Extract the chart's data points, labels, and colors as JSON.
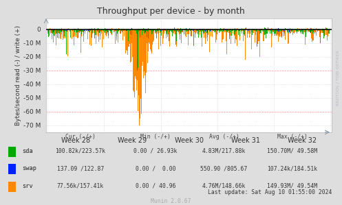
{
  "title": "Throughput per device - by month",
  "ylabel": "Bytes/second read (-) / write (+)",
  "bg_color": "#DEDEDE",
  "plot_bg_color": "#FFFFFF",
  "yticks": [
    0,
    -10000000,
    -20000000,
    -30000000,
    -40000000,
    -50000000,
    -60000000,
    -70000000
  ],
  "ytick_labels": [
    "0",
    "-10 M",
    "-20 M",
    "-30 M",
    "-40 M",
    "-50 M",
    "-60 M",
    "-70 M"
  ],
  "ylim": [
    -75000000,
    8000000
  ],
  "xlim_max": 600,
  "weeks": [
    "Week 28",
    "Week 29",
    "Week 30",
    "Week 31",
    "Week 32"
  ],
  "week_x": [
    60,
    180,
    300,
    420,
    540
  ],
  "vline_x": [
    0,
    120,
    240,
    360,
    480,
    600
  ],
  "legend_items": [
    {
      "label": "sda",
      "color": "#00AA00"
    },
    {
      "label": "swap",
      "color": "#0022FF"
    },
    {
      "label": "srv",
      "color": "#FF8800"
    }
  ],
  "legend_header": "Cur (-/+)             Min (-/+)         Avg (-/+)              Max (-/+)",
  "legend_rows": [
    "100.82k/223.57k     0.00 / 26.93k     4.83M/217.88k    150.70M/ 49.58M",
    "137.09 /122.87      0.00 /  0.00      550.90 /805.67   107.24k/184.51k",
    "77.56k/157.41k      0.00 / 40.96      4.76M/148.66k    149.93M/ 49.54M"
  ],
  "last_update": "Last update: Sat Aug 10 01:55:00 2024",
  "munin_version": "Munin 2.0.67",
  "watermark": "RRDTOOL / TOBI OETIKER",
  "sda_color": "#00AA00",
  "swap_color": "#0022FF",
  "srv_color": "#FF8800",
  "n_points": 600
}
